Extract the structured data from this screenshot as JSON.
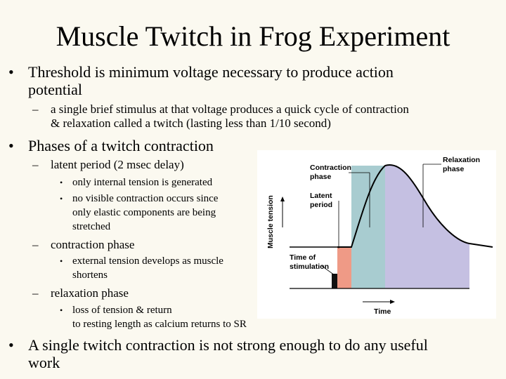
{
  "slide": {
    "title": "Muscle Twitch in Frog Experiment",
    "bullets": [
      {
        "line1": "Threshold is minimum voltage necessary to produce action",
        "line2": "potential",
        "sub": [
          {
            "line1": "a single brief stimulus at that voltage produces a quick cycle of contraction",
            "line2": "& relaxation called a twitch (lasting less than 1/10 second)"
          }
        ]
      },
      {
        "line1": "Phases of a twitch contraction",
        "sub": [
          {
            "label": "latent period (2 msec delay)",
            "items": [
              {
                "lines": [
                  "only internal tension is generated"
                ]
              },
              {
                "lines": [
                  "no visible contraction occurs since",
                  "only elastic components are being",
                  "stretched"
                ]
              }
            ]
          },
          {
            "label": "contraction phase",
            "items": [
              {
                "lines": [
                  "external tension develops as muscle",
                  "shortens"
                ]
              }
            ]
          },
          {
            "label": "relaxation phase",
            "items": [
              {
                "lines": [
                  "loss of tension & return",
                  "to resting length as calcium returns to SR"
                ]
              }
            ]
          }
        ]
      },
      {
        "line1": "A single twitch contraction is not strong enough to do any useful",
        "line2": "work"
      }
    ]
  },
  "figure": {
    "y_axis_label": "Muscle tension",
    "x_axis_label": "Time",
    "labels": {
      "contraction_line1": "Contraction",
      "contraction_line2": "phase",
      "relaxation_line1": "Relaxation",
      "relaxation_line2": "phase",
      "latent_line1": "Latent",
      "latent_line2": "period",
      "stimulation_line1": "Time of",
      "stimulation_line2": "stimulation"
    },
    "colors": {
      "latent": "#ef9a86",
      "contraction": "#a8ccd0",
      "relaxation": "#c5c0e2",
      "stimulus": "#111111",
      "curve": "#000000"
    }
  }
}
